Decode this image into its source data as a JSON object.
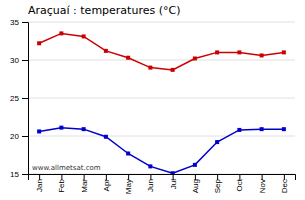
{
  "chart_data": {
    "type": "line",
    "title": "Araçuaí : temperatures (°C)",
    "categories": [
      "Jan",
      "Feb",
      "Mar",
      "Apr",
      "May",
      "Jun",
      "Jul",
      "Aug",
      "Sep",
      "Oct",
      "Nov",
      "Dec"
    ],
    "series": [
      {
        "color": "#cc0000",
        "values": [
          32.2,
          33.5,
          33.1,
          31.2,
          30.3,
          29.0,
          28.7,
          30.2,
          31.0,
          31.0,
          30.6,
          31.0
        ]
      },
      {
        "color": "#0000cc",
        "values": [
          20.6,
          21.1,
          20.9,
          19.9,
          17.7,
          16.0,
          15.1,
          16.2,
          19.2,
          20.8,
          20.9,
          20.9
        ]
      }
    ],
    "ylim": [
      15,
      35
    ],
    "yticks": [
      15,
      20,
      25,
      30,
      35
    ],
    "grid": "y",
    "marker": "square",
    "annotations": [
      "www.allmetsat.com"
    ]
  }
}
